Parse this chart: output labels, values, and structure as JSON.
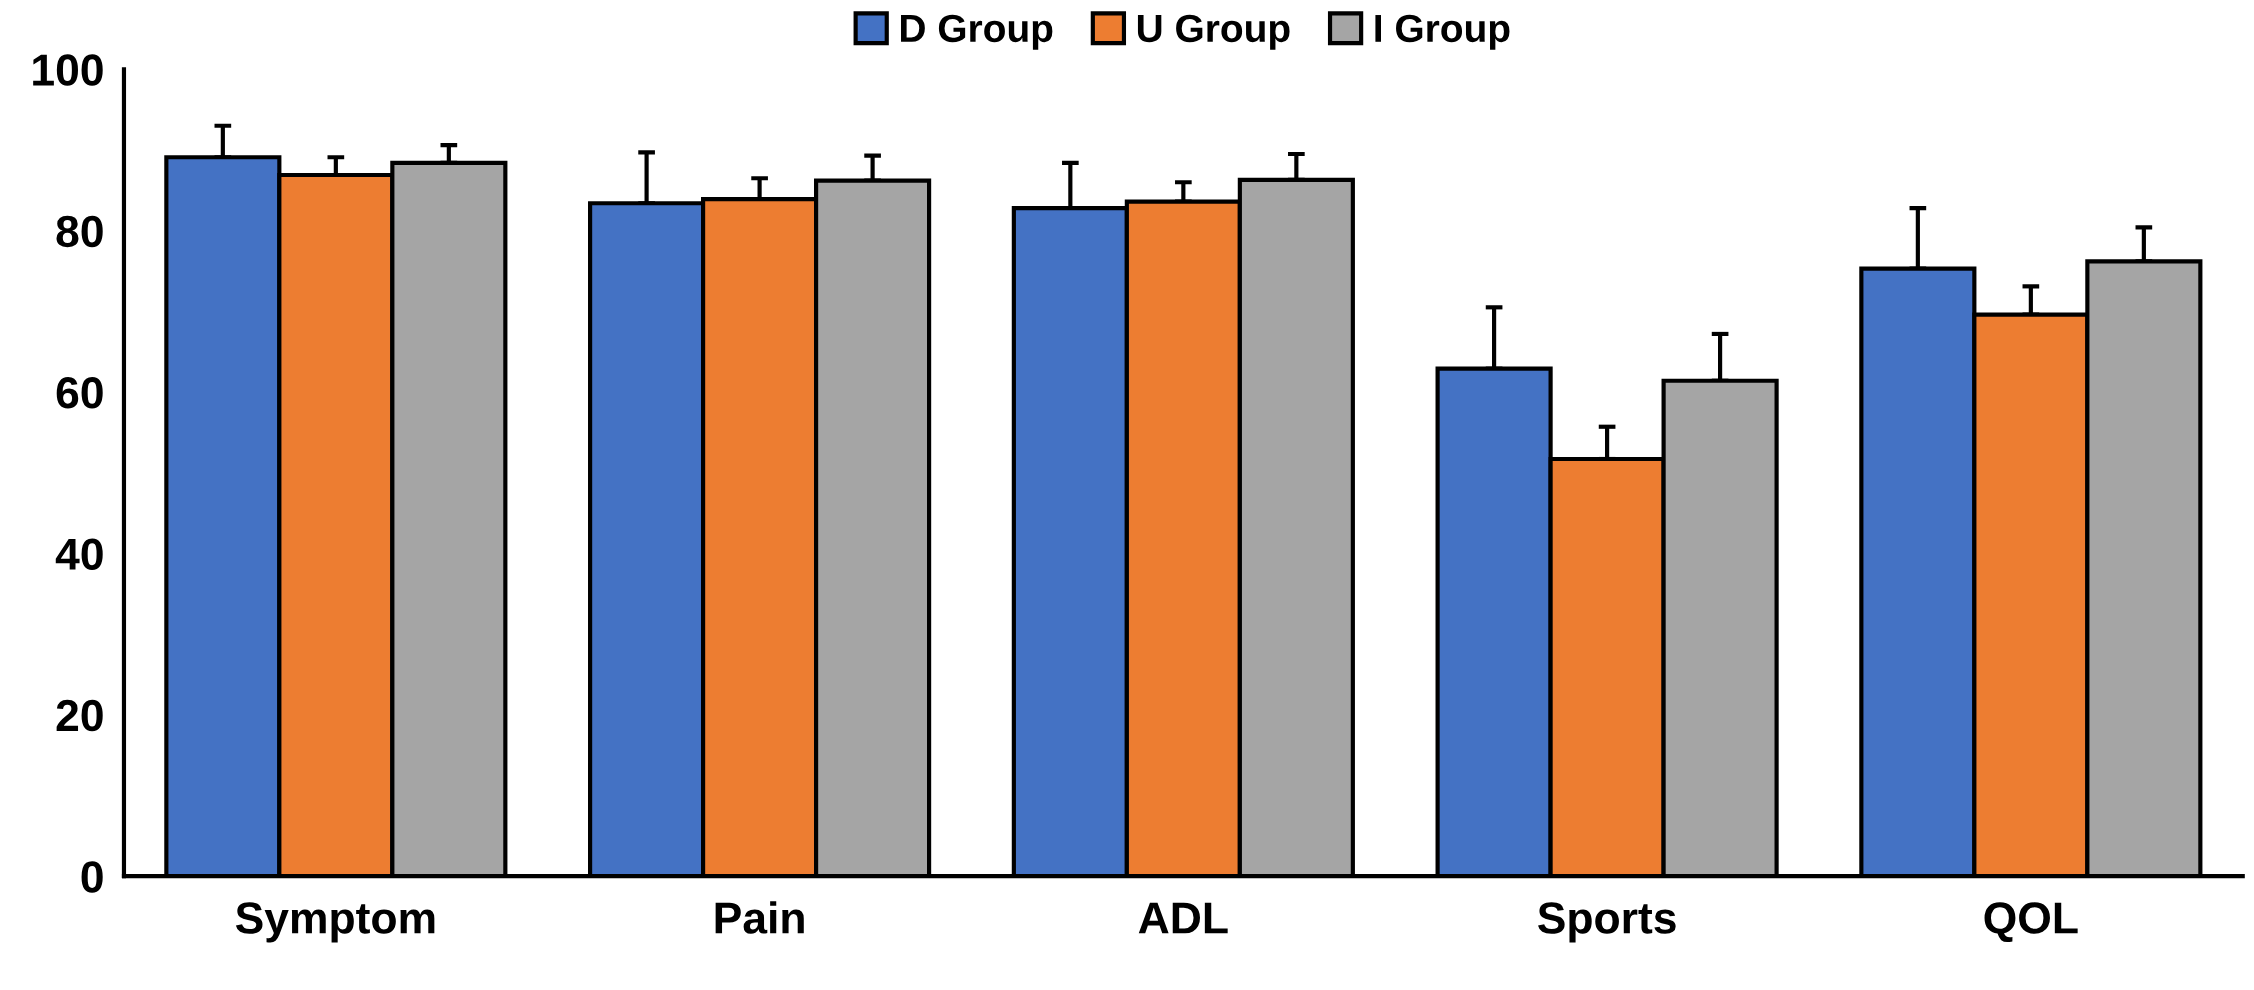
{
  "chart_data": {
    "type": "bar",
    "categories": [
      "Symptom",
      "Pain",
      "ADL",
      "Sports",
      "QOL"
    ],
    "series": [
      {
        "name": "D Group",
        "color": "#4472c4",
        "values": [
          89.1,
          83.4,
          82.8,
          62.9,
          75.3
        ],
        "errors": [
          [
            89.1,
            93.0
          ],
          [
            83.4,
            89.7
          ],
          [
            82.8,
            88.4
          ],
          [
            62.9,
            70.5
          ],
          [
            75.3,
            82.8
          ]
        ]
      },
      {
        "name": "U Group",
        "color": "#ed7d31",
        "values": [
          86.9,
          83.9,
          83.6,
          51.7,
          69.6
        ],
        "errors": [
          [
            86.9,
            89.1
          ],
          [
            83.9,
            86.5
          ],
          [
            83.6,
            86.0
          ],
          [
            51.7,
            55.7
          ],
          [
            69.6,
            73.1
          ]
        ]
      },
      {
        "name": "I Group",
        "color": "#a5a5a5",
        "values": [
          88.4,
          86.2,
          86.3,
          61.4,
          76.2
        ],
        "errors": [
          [
            88.4,
            90.6
          ],
          [
            86.2,
            89.3
          ],
          [
            86.3,
            89.5
          ],
          [
            61.4,
            67.2
          ],
          [
            76.2,
            80.4
          ]
        ]
      }
    ],
    "ylim": [
      0,
      100
    ],
    "yticks": [
      0,
      20,
      40,
      60,
      80,
      100
    ],
    "grid": false,
    "legend": "top"
  }
}
